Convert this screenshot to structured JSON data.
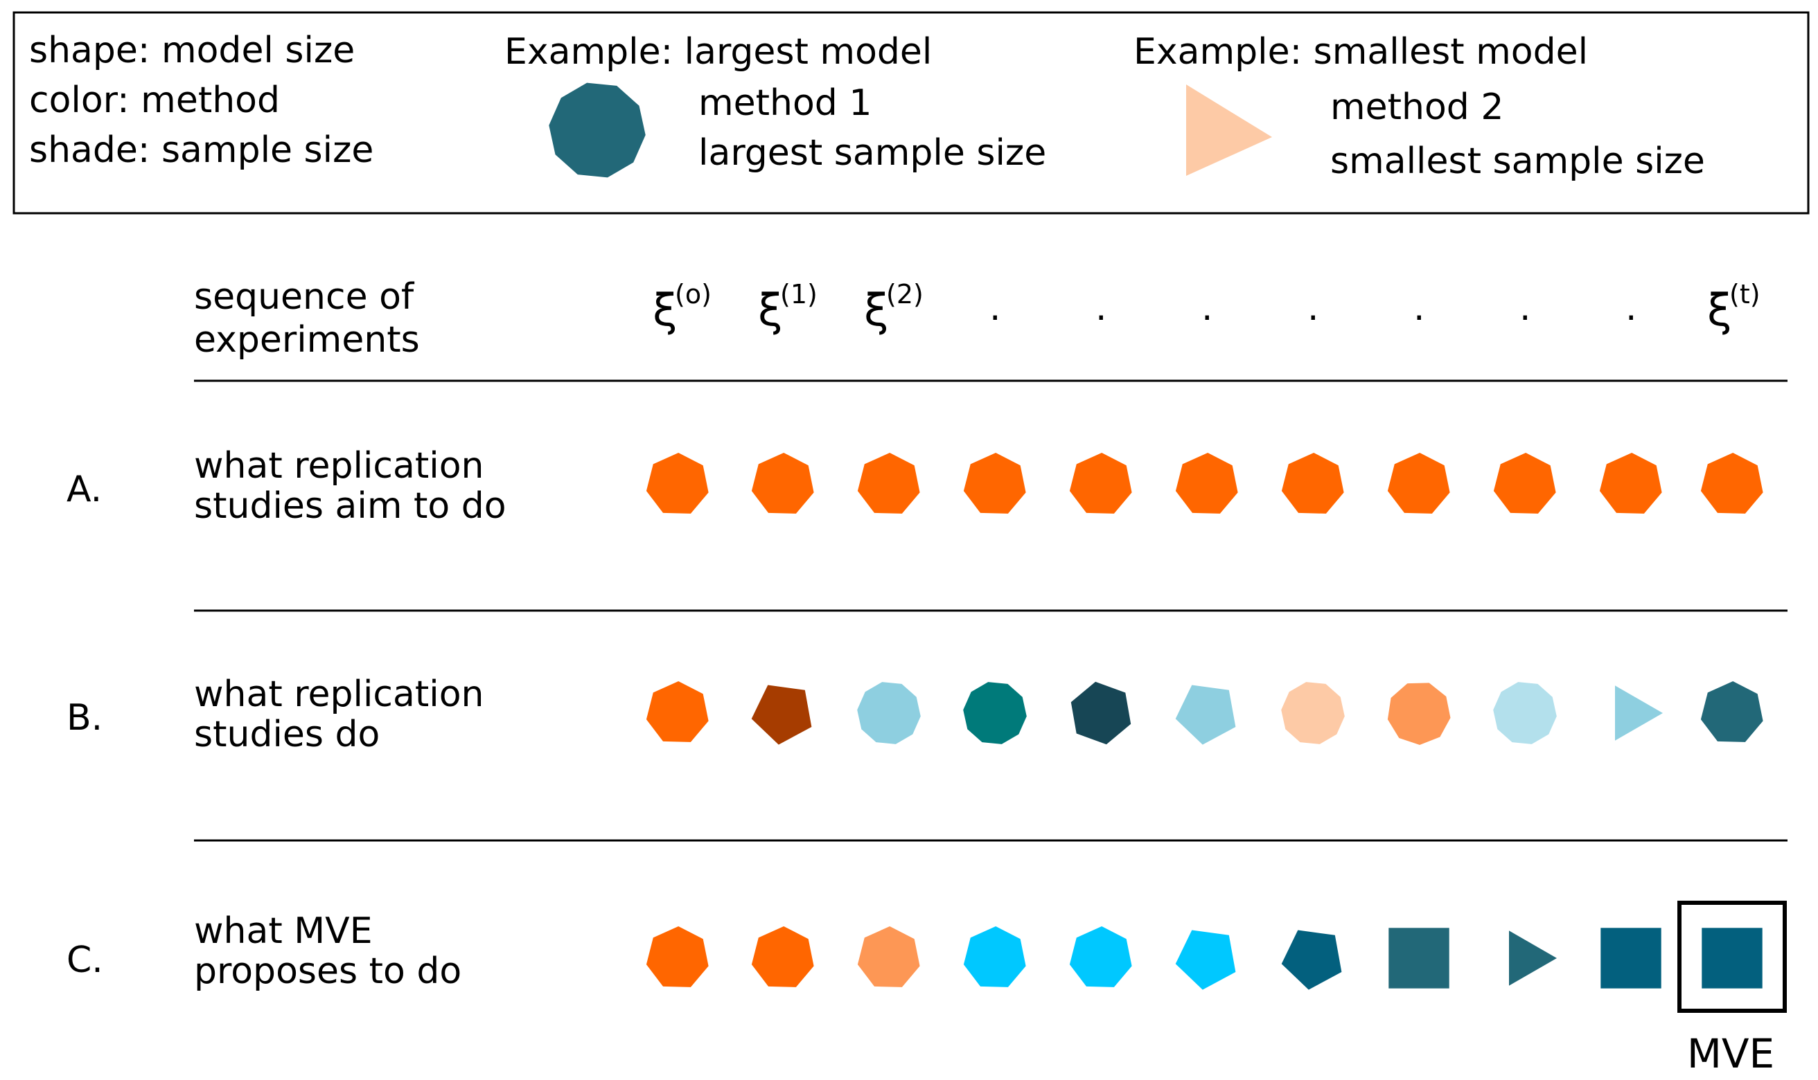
{
  "legend": {
    "key_lines": [
      "shape: model size",
      "color: method",
      "shade: sample size"
    ],
    "example1": {
      "title": "Example: largest model",
      "lines": [
        "method 1",
        "largest sample size"
      ],
      "shape": "decagon",
      "color": "#226878"
    },
    "example2": {
      "title": "Example: smallest model",
      "lines": [
        "method 2",
        "smallest sample size"
      ],
      "shape": "triangle",
      "color": "#fdcaa6"
    }
  },
  "header": {
    "label_lines": [
      "sequence of",
      "experiments"
    ],
    "columns": [
      {
        "symbol": "ξ",
        "sup": "(o)"
      },
      {
        "symbol": "ξ",
        "sup": "(1)"
      },
      {
        "symbol": "ξ",
        "sup": "(2)"
      },
      {
        "symbol": ".",
        "sup": ""
      },
      {
        "symbol": ".",
        "sup": ""
      },
      {
        "symbol": ".",
        "sup": ""
      },
      {
        "symbol": ".",
        "sup": ""
      },
      {
        "symbol": ".",
        "sup": ""
      },
      {
        "symbol": ".",
        "sup": ""
      },
      {
        "symbol": ".",
        "sup": ""
      },
      {
        "symbol": "ξ",
        "sup": "(t)"
      }
    ]
  },
  "rows": [
    {
      "letter": "A.",
      "label_lines": [
        "what replication",
        "studies aim to do"
      ],
      "markers": [
        {
          "shape": "heptagon",
          "color": "#ff6600"
        },
        {
          "shape": "heptagon",
          "color": "#ff6600"
        },
        {
          "shape": "heptagon",
          "color": "#ff6600"
        },
        {
          "shape": "heptagon",
          "color": "#ff6600"
        },
        {
          "shape": "heptagon",
          "color": "#ff6600"
        },
        {
          "shape": "heptagon",
          "color": "#ff6600"
        },
        {
          "shape": "heptagon",
          "color": "#ff6600"
        },
        {
          "shape": "heptagon",
          "color": "#ff6600"
        },
        {
          "shape": "heptagon",
          "color": "#ff6600"
        },
        {
          "shape": "heptagon",
          "color": "#ff6600"
        },
        {
          "shape": "heptagon",
          "color": "#ff6600"
        }
      ]
    },
    {
      "letter": "B.",
      "label_lines": [
        "what replication",
        "studies do"
      ],
      "markers": [
        {
          "shape": "heptagon",
          "color": "#ff6600"
        },
        {
          "shape": "pentagon",
          "color": "#a63c00"
        },
        {
          "shape": "decagon",
          "color": "#8ecfe0"
        },
        {
          "shape": "decagon",
          "color": "#007a7a"
        },
        {
          "shape": "hexagon",
          "color": "#174655"
        },
        {
          "shape": "pentagon",
          "color": "#8ecfe0"
        },
        {
          "shape": "decagon",
          "color": "#fdcaa6"
        },
        {
          "shape": "nonagon",
          "color": "#fd9755"
        },
        {
          "shape": "decagon",
          "color": "#b3e0ec"
        },
        {
          "shape": "triangle",
          "color": "#8ecfe0"
        },
        {
          "shape": "heptagon",
          "color": "#226878"
        }
      ]
    },
    {
      "letter": "C.",
      "label_lines": [
        "what MVE",
        "proposes to do"
      ],
      "markers": [
        {
          "shape": "heptagon",
          "color": "#ff6600"
        },
        {
          "shape": "heptagon",
          "color": "#ff6600"
        },
        {
          "shape": "heptagon",
          "color": "#fd9755"
        },
        {
          "shape": "heptagon",
          "color": "#00c8ff"
        },
        {
          "shape": "heptagon",
          "color": "#00c8ff"
        },
        {
          "shape": "pentagon",
          "color": "#00c8ff"
        },
        {
          "shape": "pentagon",
          "color": "#03607e"
        },
        {
          "shape": "square",
          "color": "#226878"
        },
        {
          "shape": "triangle",
          "color": "#226878"
        },
        {
          "shape": "square",
          "color": "#03607e"
        },
        {
          "shape": "square",
          "color": "#03607e",
          "boxed": true
        }
      ],
      "boxed_caption": "MVE"
    }
  ]
}
